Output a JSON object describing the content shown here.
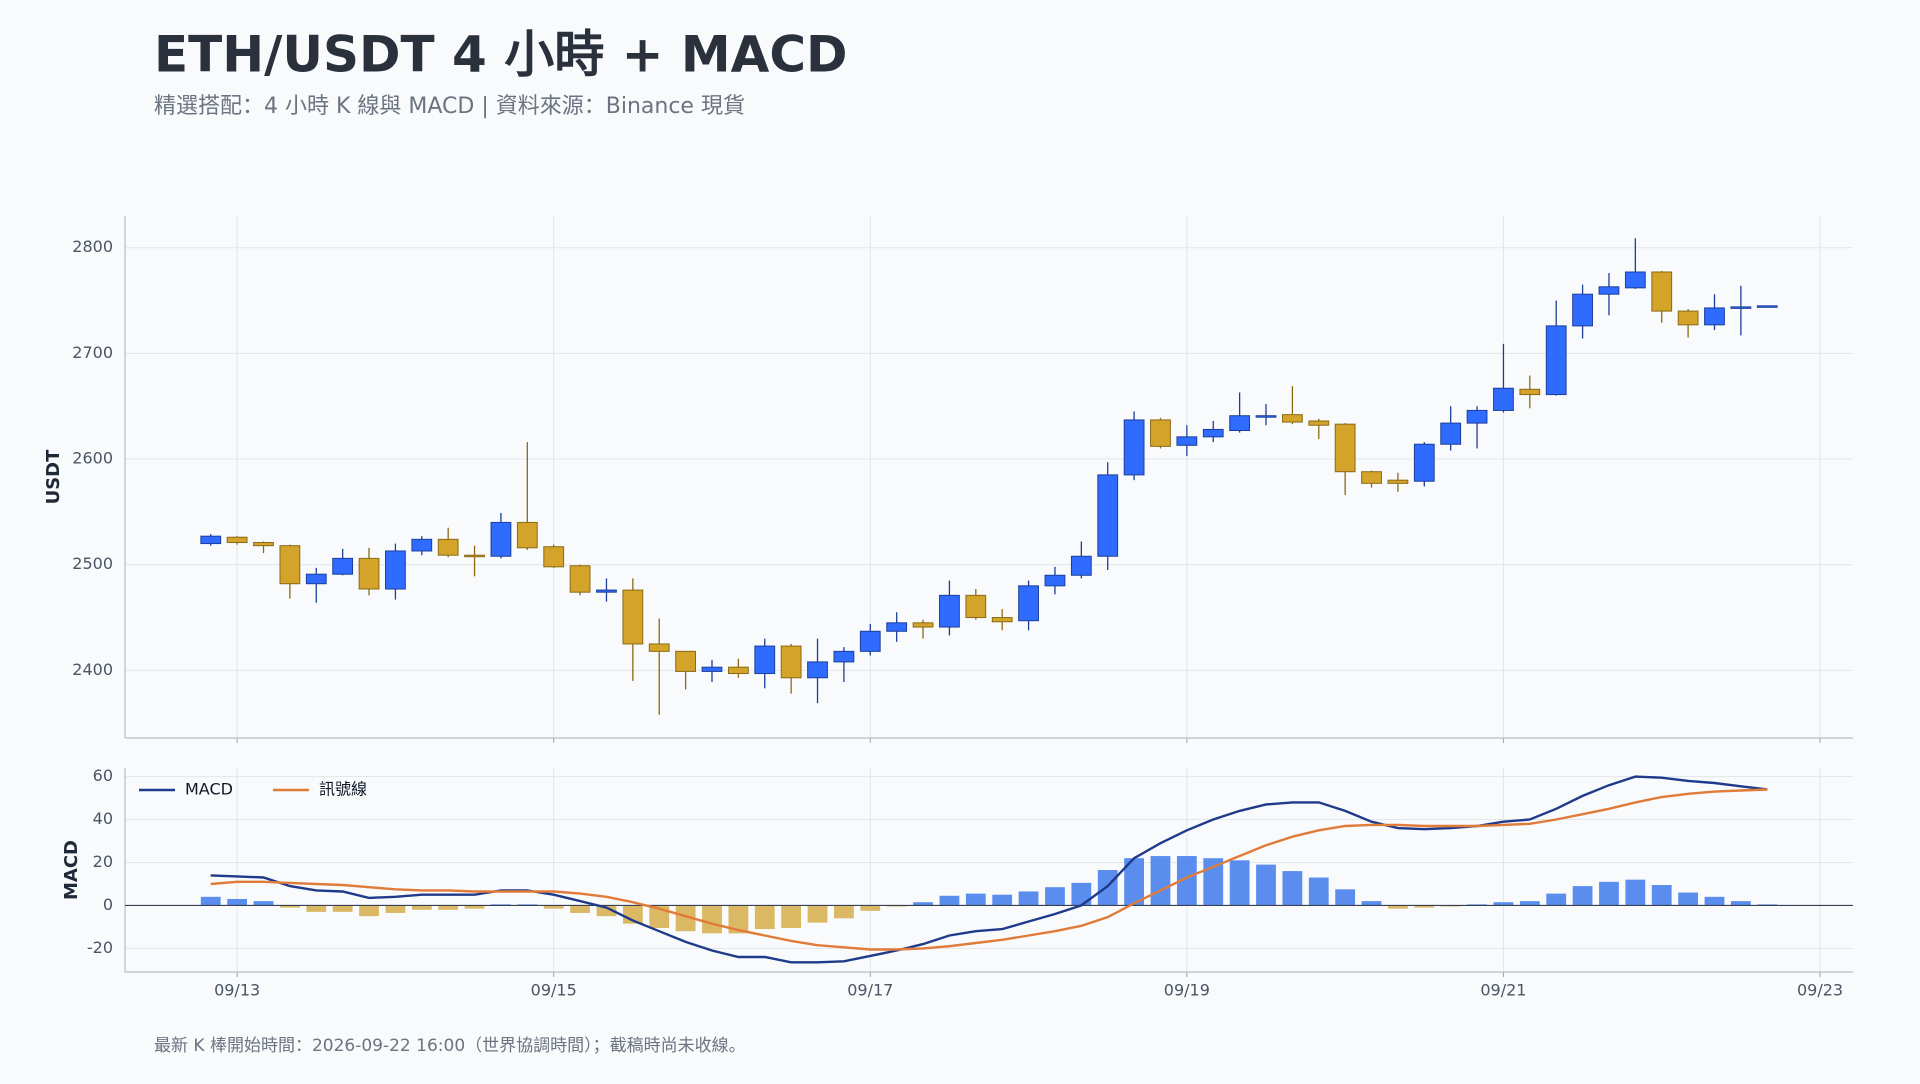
{
  "chart_data": [
    {
      "type": "candlestick",
      "title": "ETH/USDT 4 小時 + MACD",
      "subtitle": "精選搭配：4 小時 K 線與 MACD | 資料來源：Binance 現貨",
      "ylabel": "USDT",
      "x": [
        "09/12 20:00",
        "09/13 00:00",
        "09/13 04:00",
        "09/13 08:00",
        "09/13 12:00",
        "09/13 16:00",
        "09/13 20:00",
        "09/14 00:00",
        "09/14 04:00",
        "09/14 08:00",
        "09/14 12:00",
        "09/14 16:00",
        "09/14 20:00",
        "09/15 00:00",
        "09/15 04:00",
        "09/15 08:00",
        "09/15 12:00",
        "09/15 16:00",
        "09/15 20:00",
        "09/16 00:00",
        "09/16 04:00",
        "09/16 08:00",
        "09/16 12:00",
        "09/16 16:00",
        "09/16 20:00",
        "09/17 00:00",
        "09/17 04:00",
        "09/17 08:00",
        "09/17 12:00",
        "09/17 16:00",
        "09/17 20:00",
        "09/18 00:00",
        "09/18 04:00",
        "09/18 08:00",
        "09/18 12:00",
        "09/18 16:00",
        "09/18 20:00",
        "09/19 00:00",
        "09/19 04:00",
        "09/19 08:00",
        "09/19 12:00",
        "09/19 16:00",
        "09/19 20:00",
        "09/20 00:00",
        "09/20 04:00",
        "09/20 08:00",
        "09/20 12:00",
        "09/20 16:00",
        "09/20 20:00",
        "09/21 00:00",
        "09/21 04:00",
        "09/21 08:00",
        "09/21 12:00",
        "09/21 16:00",
        "09/21 20:00",
        "09/22 00:00",
        "09/22 04:00",
        "09/22 08:00",
        "09/22 12:00",
        "09/22 16:00"
      ],
      "open": [
        2520,
        2526,
        2521,
        2518,
        2482,
        2491,
        2506,
        2477,
        2513,
        2524,
        2509,
        2508,
        2540,
        2517,
        2499,
        2474,
        2476,
        2425,
        2418,
        2399,
        2403,
        2397,
        2423,
        2393,
        2408,
        2418,
        2437,
        2445,
        2441,
        2471,
        2450,
        2447,
        2480,
        2490,
        2508,
        2585,
        2637,
        2613,
        2621,
        2627,
        2640,
        2642,
        2636,
        2633,
        2588,
        2580,
        2579,
        2614,
        2634,
        2646,
        2666,
        2661,
        2726,
        2756,
        2762,
        2777,
        2740,
        2727,
        2743,
        2744
      ],
      "high": [
        2529,
        2527,
        2522,
        2519,
        2497,
        2515,
        2516,
        2520,
        2527,
        2535,
        2518,
        2549,
        2616,
        2519,
        2500,
        2487,
        2487,
        2449,
        2418,
        2410,
        2411,
        2430,
        2425,
        2430,
        2422,
        2444,
        2455,
        2448,
        2485,
        2477,
        2458,
        2485,
        2498,
        2522,
        2597,
        2645,
        2639,
        2632,
        2636,
        2663,
        2652,
        2669,
        2638,
        2634,
        2589,
        2587,
        2616,
        2650,
        2650,
        2709,
        2679,
        2750,
        2765,
        2776,
        2809,
        2778,
        2742,
        2756,
        2764,
        2745
      ],
      "low": [
        2518,
        2519,
        2511,
        2468,
        2464,
        2490,
        2471,
        2467,
        2509,
        2507,
        2489,
        2506,
        2514,
        2497,
        2471,
        2465,
        2390,
        2358,
        2382,
        2389,
        2393,
        2383,
        2378,
        2369,
        2389,
        2414,
        2427,
        2430,
        2433,
        2448,
        2438,
        2438,
        2472,
        2487,
        2495,
        2580,
        2610,
        2603,
        2616,
        2625,
        2632,
        2633,
        2619,
        2566,
        2573,
        2569,
        2574,
        2608,
        2610,
        2644,
        2648,
        2660,
        2714,
        2736,
        2761,
        2729,
        2715,
        2722,
        2717,
        2744
      ],
      "close": [
        2527,
        2521,
        2518,
        2482,
        2491,
        2506,
        2477,
        2513,
        2524,
        2509,
        2508,
        2540,
        2516,
        2498,
        2474,
        2476,
        2425,
        2418,
        2399,
        2403,
        2397,
        2423,
        2393,
        2408,
        2418,
        2437,
        2445,
        2441,
        2471,
        2450,
        2446,
        2480,
        2490,
        2508,
        2585,
        2637,
        2612,
        2621,
        2628,
        2641,
        2641,
        2635,
        2632,
        2588,
        2577,
        2577,
        2614,
        2634,
        2646,
        2667,
        2661,
        2726,
        2756,
        2763,
        2777,
        2740,
        2727,
        2743,
        2744,
        2745
      ],
      "up_color": "#2f6bff",
      "down_color": "#d4a32a",
      "ylim": [
        2336,
        2830
      ],
      "yticks": [
        2400,
        2500,
        2600,
        2700,
        2800
      ],
      "grid": true
    },
    {
      "type": "macd",
      "ylabel": "MACD",
      "legend": "upper left",
      "grid": true,
      "xlim": [
        "09/12 07:00",
        "09/23 05:00"
      ],
      "xticks": [
        "09/13",
        "09/15",
        "09/17",
        "09/19",
        "09/21",
        "09/23"
      ],
      "ylim": [
        -31,
        64
      ],
      "yticks": [
        -20,
        0,
        20,
        40,
        60
      ],
      "series": [
        {
          "name": "MACD",
          "color": "#1f3a8a",
          "values": [
            14,
            13.5,
            13,
            9,
            7,
            6.5,
            3.5,
            4,
            5,
            5,
            5,
            7,
            7,
            5,
            2,
            -1,
            -7,
            -12,
            -17,
            -21,
            -24,
            -24,
            -26.5,
            -26.5,
            -26,
            -23.5,
            -21,
            -18,
            -14,
            -12,
            -11,
            -7.5,
            -4,
            0,
            9,
            22,
            29,
            35,
            40,
            44,
            47,
            48,
            48,
            44,
            39,
            36,
            35.5,
            36,
            37,
            39,
            40,
            45,
            51,
            56,
            60,
            59.5,
            58,
            57,
            55.5,
            54
          ]
        },
        {
          "name": "訊號線",
          "color": "#e07b39",
          "values": [
            10,
            11,
            11,
            10.5,
            10,
            9.5,
            8.5,
            7.5,
            7,
            7,
            6.5,
            6.5,
            6.5,
            6.5,
            5.5,
            4,
            1.5,
            -1.5,
            -5,
            -8.5,
            -11.5,
            -14,
            -16.5,
            -18.5,
            -19.5,
            -20.5,
            -20.5,
            -20,
            -19,
            -17.5,
            -16,
            -14,
            -12,
            -9.5,
            -5.5,
            1,
            7,
            13,
            18,
            23,
            28,
            32,
            35,
            37,
            37.5,
            37.5,
            37,
            37,
            37,
            37.5,
            38,
            40,
            42.5,
            45,
            48,
            50.5,
            52,
            53,
            53.5,
            54
          ]
        }
      ],
      "histogram": {
        "up_color": "#5b8def",
        "down_color": "#dbb863",
        "values": [
          4,
          3,
          2,
          -1,
          -3,
          -3,
          -5,
          -3.5,
          -2,
          -2,
          -1.5,
          0.5,
          0.5,
          -1.5,
          -3.5,
          -5,
          -8.5,
          -10.5,
          -12,
          -13,
          -13,
          -11,
          -10.5,
          -8,
          -6,
          -2.5,
          -0.5,
          1.5,
          4.5,
          5.5,
          5,
          6.5,
          8.5,
          10.5,
          16.5,
          22,
          23,
          23,
          22,
          21,
          19,
          16,
          13,
          7.5,
          2,
          -1.5,
          -1,
          -0.5,
          0.5,
          1.5,
          2,
          5.5,
          9,
          11,
          12,
          9.5,
          6,
          4,
          2,
          0.5
        ]
      },
      "caption": "最新 K 棒開始時間：2026-09-22 16:00（世界協調時間）；截稿時尚未收線。"
    }
  ]
}
